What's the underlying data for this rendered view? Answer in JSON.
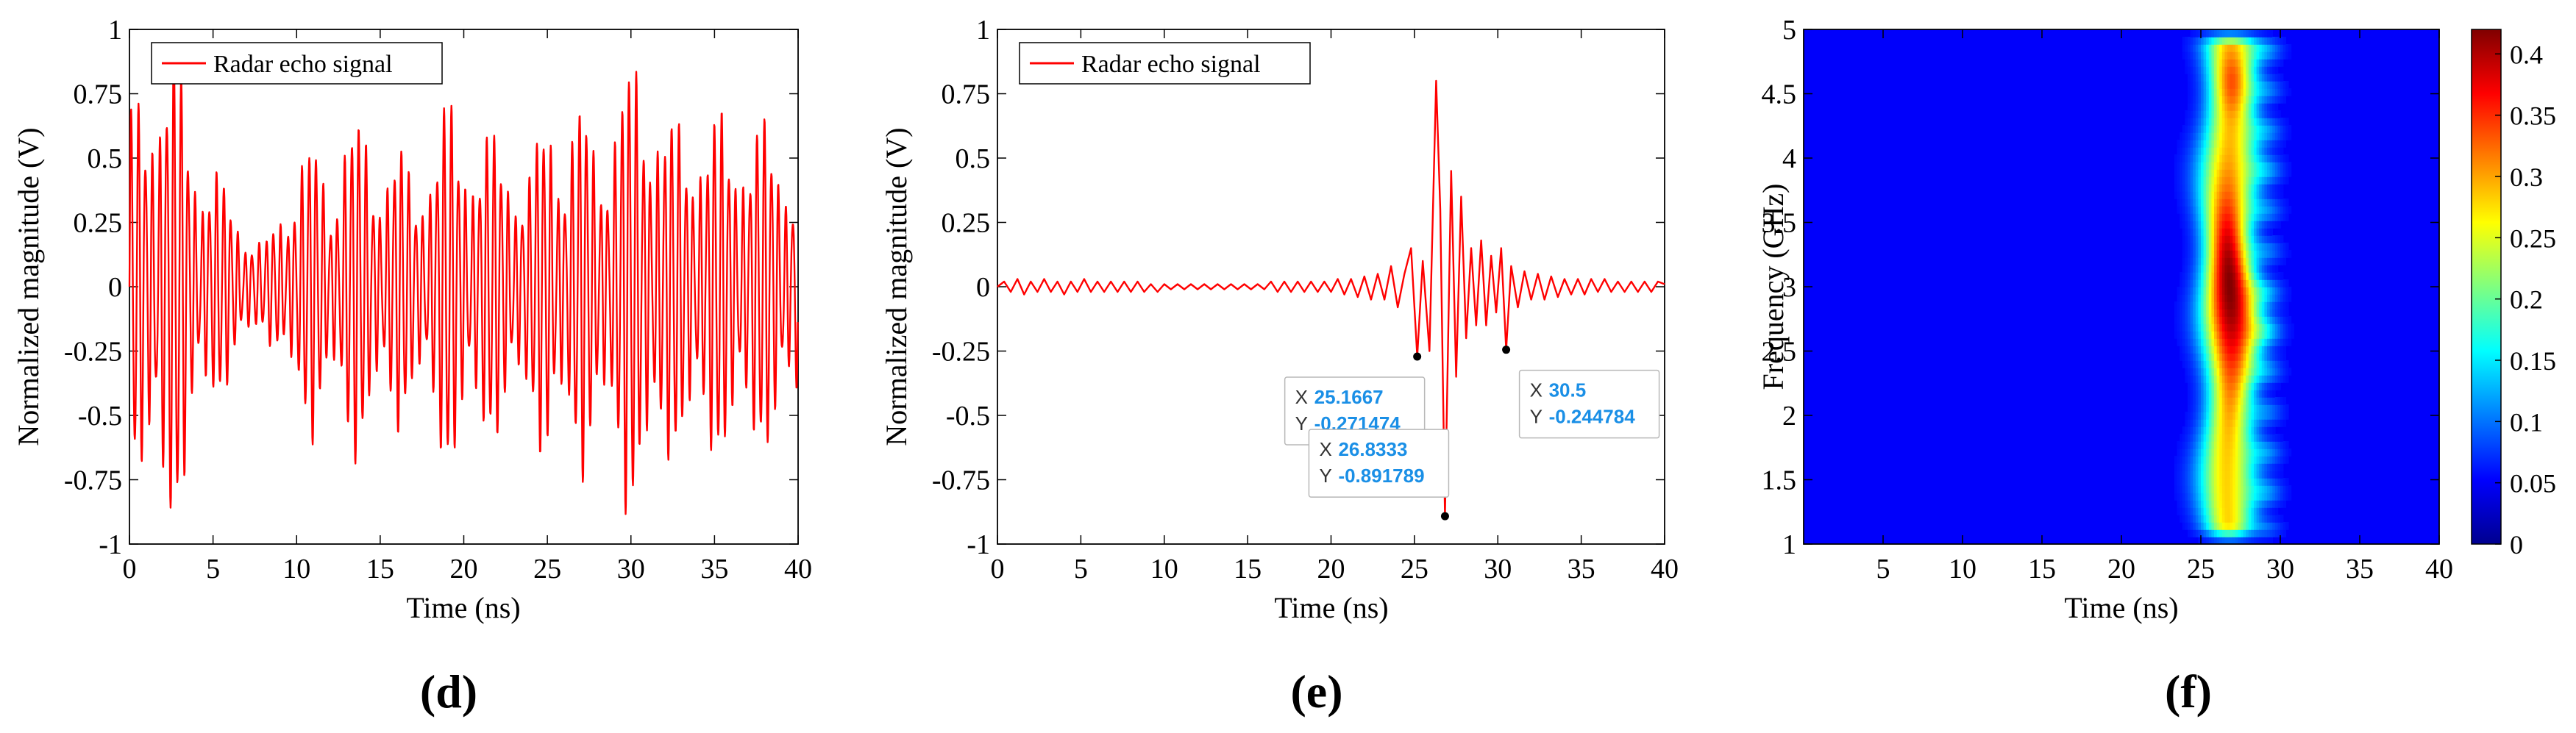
{
  "chart_data": [
    {
      "id": "d",
      "type": "line",
      "panel_label": "(d)",
      "xlabel": "Time (ns)",
      "ylabel": "Normalized magnitude (V)",
      "xlim": [
        0,
        40
      ],
      "ylim": [
        -1,
        1
      ],
      "xticks": [
        "0",
        "5",
        "10",
        "15",
        "20",
        "25",
        "30",
        "35",
        "40"
      ],
      "yticks": [
        "-1",
        "-0.75",
        "-0.5",
        "-0.25",
        "0",
        "0.25",
        "0.5",
        "0.75",
        "1"
      ],
      "legend": "top-left",
      "series": [
        {
          "name": "Radar echo signal",
          "color": "#ff0000",
          "envelope": {
            "t": [
              0,
              1,
              2,
              3,
              4,
              5,
              6,
              7,
              8,
              9,
              10,
              11,
              12,
              13,
              14,
              15,
              16,
              17,
              18,
              19,
              20,
              21,
              22,
              23,
              24,
              25,
              26,
              27,
              28,
              29,
              30,
              31,
              32,
              33,
              34,
              35,
              36,
              37,
              38,
              39,
              40
            ],
            "amp": [
              0.62,
              0.85,
              0.92,
              0.85,
              0.55,
              0.45,
              0.35,
              0.25,
              0.15,
              0.3,
              0.5,
              0.55,
              0.4,
              0.65,
              0.6,
              0.5,
              0.55,
              0.4,
              0.55,
              0.7,
              0.6,
              0.6,
              0.55,
              0.5,
              0.45,
              0.7,
              0.6,
              0.7,
              0.55,
              0.7,
              0.85,
              0.85,
              0.65,
              0.6,
              0.65,
              0.65,
              0.6,
              0.65,
              0.6,
              0.55,
              0.5
            ]
          },
          "cycles_per_ns": 2.35
        }
      ]
    },
    {
      "id": "e",
      "type": "line",
      "panel_label": "(e)",
      "xlabel": "Time (ns)",
      "ylabel": "Normalized magnitude (V)",
      "xlim": [
        0,
        40
      ],
      "ylim": [
        -1,
        1
      ],
      "xticks": [
        "0",
        "5",
        "10",
        "15",
        "20",
        "25",
        "30",
        "35",
        "40"
      ],
      "yticks": [
        "-1",
        "-0.75",
        "-0.5",
        "-0.25",
        "0",
        "0.25",
        "0.5",
        "0.75",
        "1"
      ],
      "legend": "top-left",
      "series": [
        {
          "name": "Radar echo signal",
          "color": "#ff0000",
          "points": [
            [
              0,
              0
            ],
            [
              0.4,
              0.02
            ],
            [
              0.8,
              -0.02
            ],
            [
              1.2,
              0.03
            ],
            [
              1.6,
              -0.03
            ],
            [
              2.0,
              0.02
            ],
            [
              2.4,
              -0.02
            ],
            [
              2.8,
              0.03
            ],
            [
              3.2,
              -0.02
            ],
            [
              3.6,
              0.02
            ],
            [
              4.0,
              -0.03
            ],
            [
              4.4,
              0.02
            ],
            [
              4.8,
              -0.02
            ],
            [
              5.2,
              0.03
            ],
            [
              5.6,
              -0.02
            ],
            [
              6.0,
              0.02
            ],
            [
              6.4,
              -0.02
            ],
            [
              6.8,
              0.02
            ],
            [
              7.2,
              -0.02
            ],
            [
              7.6,
              0.02
            ],
            [
              8.0,
              -0.02
            ],
            [
              8.4,
              0.02
            ],
            [
              8.8,
              -0.02
            ],
            [
              9.2,
              0.01
            ],
            [
              9.6,
              -0.02
            ],
            [
              10.0,
              0.01
            ],
            [
              10.4,
              -0.01
            ],
            [
              10.8,
              0.01
            ],
            [
              11.2,
              -0.01
            ],
            [
              11.6,
              0.01
            ],
            [
              12.0,
              -0.01
            ],
            [
              12.4,
              0.01
            ],
            [
              12.8,
              -0.01
            ],
            [
              13.2,
              0.01
            ],
            [
              13.6,
              -0.01
            ],
            [
              14.0,
              0.01
            ],
            [
              14.4,
              -0.01
            ],
            [
              14.8,
              0.01
            ],
            [
              15.2,
              -0.01
            ],
            [
              15.6,
              0.01
            ],
            [
              16.0,
              -0.01
            ],
            [
              16.4,
              0.02
            ],
            [
              16.8,
              -0.02
            ],
            [
              17.2,
              0.02
            ],
            [
              17.6,
              -0.02
            ],
            [
              18.0,
              0.02
            ],
            [
              18.4,
              -0.02
            ],
            [
              18.8,
              0.02
            ],
            [
              19.2,
              -0.02
            ],
            [
              19.6,
              0.02
            ],
            [
              20.0,
              -0.02
            ],
            [
              20.4,
              0.03
            ],
            [
              20.8,
              -0.03
            ],
            [
              21.2,
              0.03
            ],
            [
              21.6,
              -0.04
            ],
            [
              22.0,
              0.04
            ],
            [
              22.4,
              -0.05
            ],
            [
              22.8,
              0.05
            ],
            [
              23.2,
              -0.05
            ],
            [
              23.6,
              0.08
            ],
            [
              24.0,
              -0.08
            ],
            [
              24.4,
              0.05
            ],
            [
              24.8,
              0.15
            ],
            [
              25.1667,
              -0.271474
            ],
            [
              25.5,
              0.1
            ],
            [
              25.9,
              -0.25
            ],
            [
              26.3,
              0.8
            ],
            [
              26.55,
              0.3
            ],
            [
              26.8333,
              -0.891789
            ],
            [
              27.2,
              0.45
            ],
            [
              27.5,
              -0.35
            ],
            [
              27.8,
              0.35
            ],
            [
              28.1,
              -0.2
            ],
            [
              28.4,
              0.15
            ],
            [
              28.7,
              -0.15
            ],
            [
              29.0,
              0.18
            ],
            [
              29.3,
              -0.15
            ],
            [
              29.6,
              0.12
            ],
            [
              29.9,
              -0.1
            ],
            [
              30.2,
              0.15
            ],
            [
              30.5,
              -0.244784
            ],
            [
              30.8,
              0.08
            ],
            [
              31.2,
              -0.08
            ],
            [
              31.6,
              0.06
            ],
            [
              32.0,
              -0.05
            ],
            [
              32.4,
              0.05
            ],
            [
              32.8,
              -0.05
            ],
            [
              33.2,
              0.04
            ],
            [
              33.6,
              -0.04
            ],
            [
              34.0,
              0.03
            ],
            [
              34.4,
              -0.03
            ],
            [
              34.8,
              0.03
            ],
            [
              35.2,
              -0.03
            ],
            [
              35.6,
              0.03
            ],
            [
              36.0,
              -0.02
            ],
            [
              36.4,
              0.03
            ],
            [
              36.8,
              -0.02
            ],
            [
              37.2,
              0.02
            ],
            [
              37.6,
              -0.02
            ],
            [
              38.0,
              0.02
            ],
            [
              38.4,
              -0.02
            ],
            [
              38.8,
              0.02
            ],
            [
              39.2,
              -0.02
            ],
            [
              39.6,
              0.02
            ],
            [
              40.0,
              0.01
            ]
          ]
        }
      ],
      "datatips": [
        {
          "x": 25.1667,
          "y": -0.271474,
          "x_text": "25.1667",
          "y_text": "-0.271474",
          "placement": "below-left"
        },
        {
          "x": 26.8333,
          "y": -0.891789,
          "x_text": "26.8333",
          "y_text": "-0.891789",
          "placement": "above-left"
        },
        {
          "x": 30.5,
          "y": -0.244784,
          "x_text": "30.5",
          "y_text": "-0.244784",
          "placement": "below-right"
        }
      ],
      "datatip_x_label": "X",
      "datatip_y_label": "Y"
    },
    {
      "id": "f",
      "type": "heatmap",
      "panel_label": "(f)",
      "xlabel": "Time (ns)",
      "ylabel": "Frequency (GHz)",
      "xlim": [
        0,
        40
      ],
      "ylim": [
        1,
        5
      ],
      "xticks": [
        "5",
        "10",
        "15",
        "20",
        "25",
        "30",
        "35",
        "40"
      ],
      "yticks": [
        "1",
        "1.5",
        "2",
        "2.5",
        "3",
        "3.5",
        "4",
        "4.5",
        "5"
      ],
      "colorbar": {
        "min": 0,
        "max": 0.42,
        "ticks": [
          "0",
          "0.05",
          "0.1",
          "0.15",
          "0.2",
          "0.25",
          "0.3",
          "0.35",
          "0.4"
        ],
        "colormap": "jet"
      },
      "ridge": {
        "center_time_ns": 26.8,
        "width_ns": 1.6,
        "peak_value": 0.42,
        "peak_frequency_ghz": 3.0
      }
    }
  ]
}
